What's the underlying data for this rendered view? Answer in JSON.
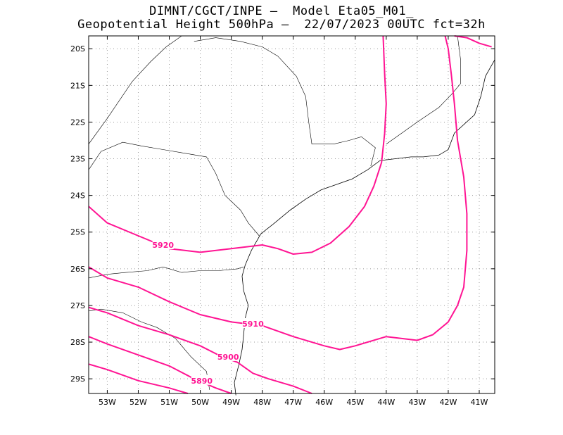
{
  "title_line1": "DIMNT/CGCT/INPE –  Model Eta05_M01_",
  "title_line2": "Geopotential Height 500hPa –  22/07/2023 00UTC fct=32h",
  "colors": {
    "contour": "#ff1493",
    "coast": "#000000",
    "grid": "#999999"
  },
  "map": {
    "lon_range": [
      -53.6,
      -40.5
    ],
    "lat_range": [
      -29.4,
      -19.65
    ],
    "x_ticks": [
      {
        "lon": -53,
        "label": "53W"
      },
      {
        "lon": -52,
        "label": "52W"
      },
      {
        "lon": -51,
        "label": "51W"
      },
      {
        "lon": -50,
        "label": "50W"
      },
      {
        "lon": -49,
        "label": "49W"
      },
      {
        "lon": -48,
        "label": "48W"
      },
      {
        "lon": -47,
        "label": "47W"
      },
      {
        "lon": -46,
        "label": "46W"
      },
      {
        "lon": -45,
        "label": "45W"
      },
      {
        "lon": -44,
        "label": "44W"
      },
      {
        "lon": -43,
        "label": "43W"
      },
      {
        "lon": -42,
        "label": "42W"
      },
      {
        "lon": -41,
        "label": "41W"
      }
    ],
    "y_ticks": [
      {
        "lat": -20,
        "label": "20S"
      },
      {
        "lat": -21,
        "label": "21S"
      },
      {
        "lat": -22,
        "label": "22S"
      },
      {
        "lat": -23,
        "label": "23S"
      },
      {
        "lat": -24,
        "label": "24S"
      },
      {
        "lat": -25,
        "label": "25S"
      },
      {
        "lat": -26,
        "label": "26S"
      },
      {
        "lat": -27,
        "label": "27S"
      },
      {
        "lat": -28,
        "label": "28S"
      },
      {
        "lat": -29,
        "label": "29S"
      }
    ],
    "contours": [
      {
        "value": "5890",
        "label_at": [
          -49.95,
          -29.05
        ],
        "points": [
          [
            -53.6,
            -28.6
          ],
          [
            -53.0,
            -28.75
          ],
          [
            -52.0,
            -29.05
          ],
          [
            -51.0,
            -29.25
          ],
          [
            -50.4,
            -29.4
          ]
        ]
      },
      {
        "value": "5890",
        "label_at": null,
        "points": [
          [
            -53.6,
            -27.85
          ],
          [
            -53.0,
            -28.05
          ],
          [
            -52.0,
            -28.35
          ],
          [
            -51.0,
            -28.65
          ],
          [
            -50.2,
            -29.0
          ],
          [
            -49.5,
            -29.25
          ],
          [
            -49.0,
            -29.4
          ]
        ]
      },
      {
        "value": "5900",
        "label_at": [
          -49.1,
          -28.4
        ],
        "points": [
          [
            -53.6,
            -27.05
          ],
          [
            -53.0,
            -27.2
          ],
          [
            -52.0,
            -27.55
          ],
          [
            -51.0,
            -27.8
          ],
          [
            -50.0,
            -28.1
          ],
          [
            -49.3,
            -28.4
          ],
          [
            -48.8,
            -28.55
          ],
          [
            -48.3,
            -28.85
          ],
          [
            -47.8,
            -29.0
          ],
          [
            -47.0,
            -29.2
          ],
          [
            -46.4,
            -29.4
          ]
        ]
      },
      {
        "value": "5910",
        "label_at": [
          -48.3,
          -27.5
        ],
        "points": [
          [
            -53.6,
            -25.95
          ],
          [
            -53.0,
            -26.25
          ],
          [
            -52.0,
            -26.5
          ],
          [
            -51.0,
            -26.9
          ],
          [
            -50.0,
            -27.25
          ],
          [
            -49.0,
            -27.45
          ],
          [
            -48.0,
            -27.55
          ],
          [
            -47.0,
            -27.85
          ],
          [
            -46.0,
            -28.1
          ],
          [
            -45.5,
            -28.2
          ],
          [
            -45.0,
            -28.1
          ],
          [
            -44.0,
            -27.85
          ],
          [
            -43.0,
            -27.95
          ],
          [
            -42.5,
            -27.8
          ],
          [
            -42.0,
            -27.45
          ],
          [
            -41.7,
            -27.0
          ],
          [
            -41.5,
            -26.5
          ],
          [
            -41.4,
            -25.5
          ],
          [
            -41.4,
            -24.5
          ],
          [
            -41.5,
            -23.5
          ],
          [
            -41.7,
            -22.5
          ],
          [
            -41.8,
            -21.5
          ],
          [
            -41.9,
            -20.7
          ],
          [
            -42.0,
            -20.0
          ],
          [
            -42.1,
            -19.65
          ]
        ]
      },
      {
        "value": "5920",
        "label_at": [
          -51.2,
          -25.35
        ],
        "points": [
          [
            -53.6,
            -24.3
          ],
          [
            -53.0,
            -24.75
          ],
          [
            -52.0,
            -25.1
          ],
          [
            -51.0,
            -25.45
          ],
          [
            -50.0,
            -25.55
          ],
          [
            -49.0,
            -25.45
          ],
          [
            -48.0,
            -25.35
          ],
          [
            -47.5,
            -25.45
          ],
          [
            -47.0,
            -25.6
          ],
          [
            -46.4,
            -25.55
          ],
          [
            -45.8,
            -25.3
          ],
          [
            -45.2,
            -24.85
          ],
          [
            -44.7,
            -24.3
          ],
          [
            -44.4,
            -23.75
          ],
          [
            -44.15,
            -23.1
          ],
          [
            -44.05,
            -22.3
          ],
          [
            -44.0,
            -21.5
          ],
          [
            -44.05,
            -20.7
          ],
          [
            -44.1,
            -19.65
          ]
        ]
      },
      {
        "value": "",
        "label_at": null,
        "points": [
          [
            -41.8,
            -19.65
          ],
          [
            -41.4,
            -19.7
          ],
          [
            -41.0,
            -19.85
          ],
          [
            -40.6,
            -19.95
          ]
        ]
      }
    ],
    "coastline": [
      [
        -48.85,
        -29.45
      ],
      [
        -48.9,
        -29.1
      ],
      [
        -48.75,
        -28.6
      ],
      [
        -48.65,
        -28.2
      ],
      [
        -48.6,
        -27.8
      ],
      [
        -48.55,
        -27.35
      ],
      [
        -48.45,
        -27.0
      ],
      [
        -48.6,
        -26.6
      ],
      [
        -48.65,
        -26.2
      ],
      [
        -48.55,
        -25.9
      ],
      [
        -48.35,
        -25.5
      ],
      [
        -48.05,
        -25.05
      ],
      [
        -47.6,
        -24.75
      ],
      [
        -47.1,
        -24.4
      ],
      [
        -46.6,
        -24.1
      ],
      [
        -46.1,
        -23.85
      ],
      [
        -45.6,
        -23.7
      ],
      [
        -45.1,
        -23.55
      ],
      [
        -44.6,
        -23.3
      ],
      [
        -44.2,
        -23.05
      ],
      [
        -43.7,
        -23.0
      ],
      [
        -43.2,
        -22.95
      ],
      [
        -42.8,
        -22.95
      ],
      [
        -42.3,
        -22.9
      ],
      [
        -42.0,
        -22.75
      ],
      [
        -41.8,
        -22.3
      ],
      [
        -41.15,
        -21.8
      ],
      [
        -40.95,
        -21.3
      ],
      [
        -40.8,
        -20.75
      ],
      [
        -40.5,
        -20.3
      ]
    ],
    "borders": [
      [
        [
          -53.6,
          -23.3
        ],
        [
          -53.2,
          -22.8
        ],
        [
          -52.5,
          -22.55
        ],
        [
          -51.9,
          -22.65
        ],
        [
          -51.2,
          -22.75
        ],
        [
          -50.5,
          -22.85
        ],
        [
          -49.8,
          -22.95
        ],
        [
          -49.5,
          -23.4
        ],
        [
          -49.2,
          -24.0
        ],
        [
          -48.7,
          -24.4
        ],
        [
          -48.45,
          -24.75
        ],
        [
          -48.1,
          -25.1
        ]
      ],
      [
        [
          -53.6,
          -26.25
        ],
        [
          -53.0,
          -26.15
        ],
        [
          -52.4,
          -26.1
        ],
        [
          -51.7,
          -26.05
        ],
        [
          -51.2,
          -25.95
        ],
        [
          -50.6,
          -26.1
        ],
        [
          -50.0,
          -26.05
        ],
        [
          -49.4,
          -26.05
        ],
        [
          -48.8,
          -26.0
        ],
        [
          -48.6,
          -25.95
        ]
      ],
      [
        [
          -53.6,
          -27.15
        ],
        [
          -53.2,
          -27.1
        ],
        [
          -52.5,
          -27.2
        ],
        [
          -51.9,
          -27.45
        ],
        [
          -51.4,
          -27.6
        ],
        [
          -50.8,
          -27.9
        ],
        [
          -50.3,
          -28.4
        ],
        [
          -49.8,
          -28.8
        ],
        [
          -49.7,
          -29.3
        ]
      ],
      [
        [
          -50.2,
          -19.8
        ],
        [
          -49.5,
          -19.7
        ],
        [
          -48.7,
          -19.8
        ],
        [
          -48.0,
          -19.95
        ],
        [
          -47.5,
          -20.2
        ],
        [
          -46.9,
          -20.75
        ],
        [
          -46.6,
          -21.3
        ],
        [
          -46.5,
          -22.0
        ],
        [
          -46.4,
          -22.6
        ],
        [
          -45.7,
          -22.6
        ],
        [
          -45.2,
          -22.5
        ],
        [
          -44.8,
          -22.4
        ],
        [
          -44.35,
          -22.7
        ],
        [
          -44.5,
          -23.2
        ]
      ],
      [
        [
          -53.6,
          -22.6
        ],
        [
          -53.0,
          -21.9
        ],
        [
          -52.2,
          -20.9
        ],
        [
          -51.6,
          -20.35
        ],
        [
          -51.1,
          -19.95
        ],
        [
          -50.6,
          -19.65
        ]
      ],
      [
        [
          -44.0,
          -22.6
        ],
        [
          -43.5,
          -22.3
        ],
        [
          -43.0,
          -22.0
        ],
        [
          -42.3,
          -21.6
        ],
        [
          -41.9,
          -21.25
        ],
        [
          -41.6,
          -20.95
        ],
        [
          -41.6,
          -20.3
        ],
        [
          -41.7,
          -19.65
        ]
      ]
    ]
  }
}
